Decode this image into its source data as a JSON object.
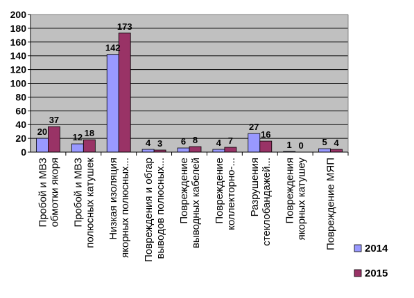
{
  "chart_data": {
    "type": "bar",
    "categories": [
      [
        "Пробой и МВЗ",
        "обмотки якоря"
      ],
      [
        "Пробой и МВЗ",
        "полюсных катушек"
      ],
      [
        "Низкая изоляция",
        "якорных полюсных..."
      ],
      [
        "Повреждения и обгар",
        "выводов полюсных..."
      ],
      [
        "Повреждение",
        "выводных кабелей"
      ],
      [
        "Повреждение",
        "коллекторно-..."
      ],
      [
        "Разрушения",
        "стеклобандажей..."
      ],
      [
        "Повреждения",
        "якорных катушеу"
      ],
      [
        "Повреждение МЯП"
      ]
    ],
    "series": [
      {
        "name": "2014",
        "color": "#9999ff",
        "values": [
          20,
          12,
          142,
          4,
          6,
          4,
          27,
          1,
          5
        ]
      },
      {
        "name": "2015",
        "color": "#993366",
        "values": [
          37,
          18,
          173,
          3,
          8,
          7,
          16,
          0,
          4
        ]
      }
    ],
    "ylim": [
      0,
      200
    ],
    "yticks": [
      0,
      20,
      40,
      60,
      80,
      100,
      120,
      140,
      160,
      180,
      200
    ],
    "plot_background": "#c0c0c0",
    "gridlines": true,
    "legend_position": "right",
    "title": "",
    "xlabel": "",
    "ylabel": ""
  }
}
